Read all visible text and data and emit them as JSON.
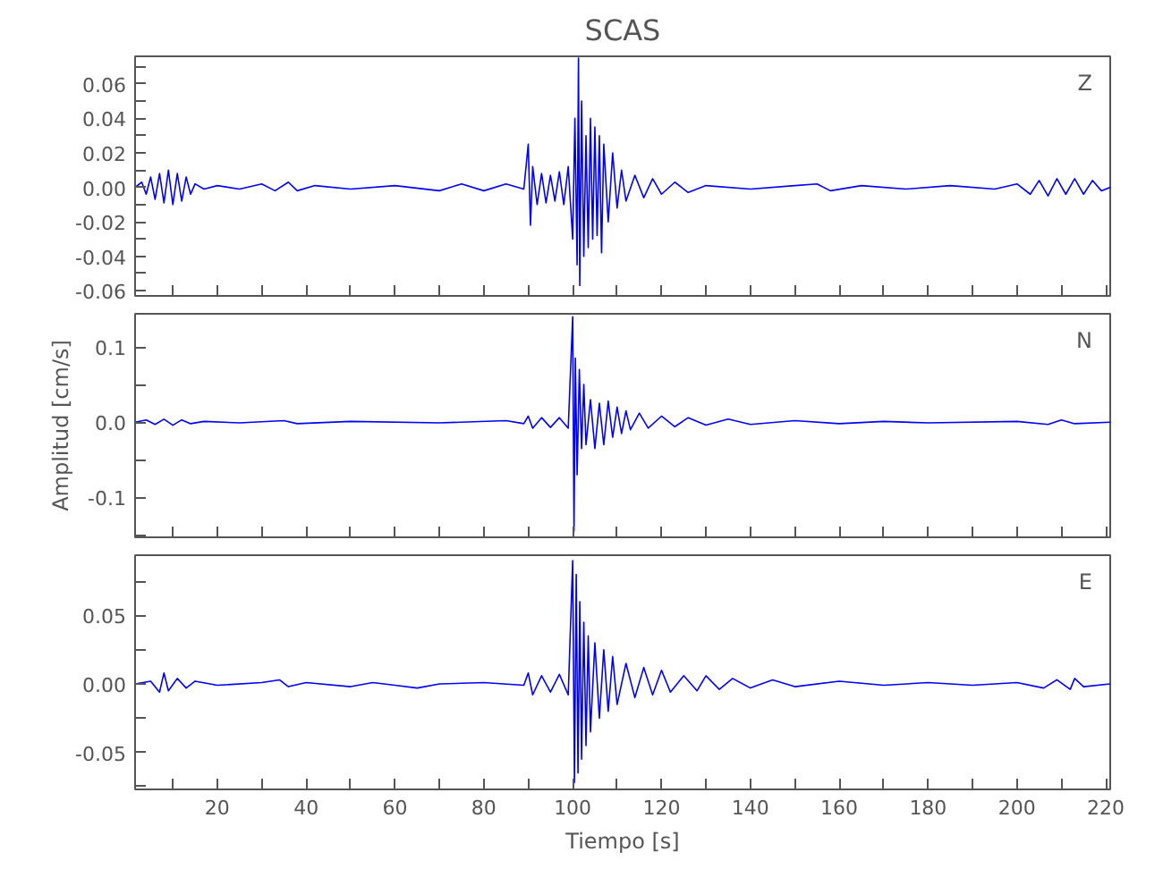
{
  "chart_data": [
    {
      "type": "line",
      "title": "SCAS",
      "annotations": [
        "Z"
      ],
      "grid": false,
      "tick_labels": "y",
      "xlim": [
        1.5,
        221
      ],
      "ylim": [
        -0.063,
        0.076
      ],
      "xticks": [
        {
          "value": 10,
          "label": null
        },
        {
          "value": 20,
          "label": null
        },
        {
          "value": 30,
          "label": null
        },
        {
          "value": 40,
          "label": null
        },
        {
          "value": 50,
          "label": null
        },
        {
          "value": 60,
          "label": null
        },
        {
          "value": 70,
          "label": null
        },
        {
          "value": 80,
          "label": null
        },
        {
          "value": 90,
          "label": null
        },
        {
          "value": 100,
          "label": null
        },
        {
          "value": 110,
          "label": null
        },
        {
          "value": 120,
          "label": null
        },
        {
          "value": 130,
          "label": null
        },
        {
          "value": 140,
          "label": null
        },
        {
          "value": 150,
          "label": null
        },
        {
          "value": 160,
          "label": null
        },
        {
          "value": 170,
          "label": null
        },
        {
          "value": 180,
          "label": null
        },
        {
          "value": 190,
          "label": null
        },
        {
          "value": 200,
          "label": null
        },
        {
          "value": 210,
          "label": null
        },
        {
          "value": 220,
          "label": null
        }
      ],
      "yticks": [
        {
          "value": -0.06,
          "label": "-0.06"
        },
        {
          "value": -0.05,
          "label": null
        },
        {
          "value": -0.04,
          "label": "-0.04"
        },
        {
          "value": -0.03,
          "label": null
        },
        {
          "value": -0.02,
          "label": "-0.02"
        },
        {
          "value": -0.01,
          "label": null
        },
        {
          "value": 0,
          "label": "0.00"
        },
        {
          "value": 0.01,
          "label": null
        },
        {
          "value": 0.02,
          "label": "0.02"
        },
        {
          "value": 0.03,
          "label": null
        },
        {
          "value": 0.04,
          "label": "0.04"
        },
        {
          "value": 0.05,
          "label": null
        },
        {
          "value": 0.06,
          "label": "0.06"
        },
        {
          "value": 0.07,
          "label": null
        }
      ],
      "series": [
        {
          "color": "#0000ff",
          "x": [
            1.5,
            3,
            4,
            5,
            6,
            7,
            8,
            9,
            10,
            11,
            12,
            13,
            14,
            15,
            17,
            20,
            25,
            30,
            33,
            36,
            38,
            42,
            50,
            60,
            70,
            75,
            80,
            85,
            89,
            90,
            90.5,
            91,
            92,
            93,
            94,
            95,
            96,
            97,
            98,
            99,
            100,
            100.5,
            101,
            101.3,
            101.6,
            102,
            102.5,
            103,
            103.5,
            104,
            104.5,
            105,
            105.5,
            106,
            106.5,
            107,
            108,
            109,
            110,
            111,
            112,
            114,
            116,
            118,
            120,
            123,
            126,
            130,
            140,
            150,
            155,
            158,
            165,
            175,
            185,
            195,
            200,
            203,
            205,
            207,
            209,
            211,
            213,
            215,
            217,
            219,
            221
          ],
          "values": [
            0,
            0.003,
            -0.004,
            0.006,
            -0.007,
            0.008,
            -0.009,
            0.01,
            -0.01,
            0.008,
            -0.008,
            0.006,
            -0.004,
            0.002,
            -0.001,
            0.001,
            -0.001,
            0.002,
            -0.002,
            0.003,
            -0.002,
            0.001,
            -0.001,
            0.001,
            -0.002,
            0.002,
            -0.002,
            0.002,
            -0.001,
            0.025,
            -0.022,
            0.012,
            -0.01,
            0.008,
            -0.009,
            0.007,
            -0.008,
            0.009,
            -0.01,
            0.012,
            -0.03,
            0.04,
            -0.045,
            0.075,
            -0.057,
            0.05,
            -0.04,
            0.03,
            -0.035,
            0.04,
            -0.03,
            0.035,
            -0.028,
            0.03,
            -0.038,
            0.025,
            -0.02,
            0.02,
            -0.012,
            0.01,
            -0.008,
            0.007,
            -0.006,
            0.005,
            -0.004,
            0.003,
            -0.003,
            0.001,
            -0.001,
            0.001,
            0.002,
            -0.002,
            0.001,
            -0.001,
            0.001,
            -0.001,
            0.002,
            -0.004,
            0.004,
            -0.005,
            0.005,
            -0.004,
            0.005,
            -0.004,
            0.004,
            -0.002,
            0
          ]
        }
      ]
    },
    {
      "type": "line",
      "ylabel": "Amplitud [cm/s]",
      "annotations": [
        "N"
      ],
      "grid": false,
      "tick_labels": "y",
      "xlim": [
        1.5,
        221
      ],
      "ylim": [
        -0.153,
        0.144
      ],
      "xticks": [
        {
          "value": 10,
          "label": null
        },
        {
          "value": 20,
          "label": null
        },
        {
          "value": 30,
          "label": null
        },
        {
          "value": 40,
          "label": null
        },
        {
          "value": 50,
          "label": null
        },
        {
          "value": 60,
          "label": null
        },
        {
          "value": 70,
          "label": null
        },
        {
          "value": 80,
          "label": null
        },
        {
          "value": 90,
          "label": null
        },
        {
          "value": 100,
          "label": null
        },
        {
          "value": 110,
          "label": null
        },
        {
          "value": 120,
          "label": null
        },
        {
          "value": 130,
          "label": null
        },
        {
          "value": 140,
          "label": null
        },
        {
          "value": 150,
          "label": null
        },
        {
          "value": 160,
          "label": null
        },
        {
          "value": 170,
          "label": null
        },
        {
          "value": 180,
          "label": null
        },
        {
          "value": 190,
          "label": null
        },
        {
          "value": 200,
          "label": null
        },
        {
          "value": 210,
          "label": null
        },
        {
          "value": 220,
          "label": null
        }
      ],
      "yticks": [
        {
          "value": -0.15,
          "label": null
        },
        {
          "value": -0.1,
          "label": "-0.1"
        },
        {
          "value": -0.05,
          "label": null
        },
        {
          "value": 0,
          "label": "0.0"
        },
        {
          "value": 0.05,
          "label": null
        },
        {
          "value": 0.1,
          "label": "0.1"
        }
      ],
      "series": [
        {
          "color": "#0000ff",
          "x": [
            1.5,
            4,
            6,
            8,
            10,
            12,
            14,
            17,
            25,
            35,
            38,
            50,
            70,
            85,
            89,
            90,
            91,
            93,
            95,
            97,
            99,
            100,
            100.3,
            100.6,
            101,
            101.5,
            102,
            102.5,
            103,
            104,
            105,
            106,
            107,
            108,
            109,
            110,
            111,
            112,
            113,
            115,
            117,
            120,
            123,
            126,
            130,
            135,
            140,
            150,
            160,
            170,
            180,
            200,
            207,
            210,
            213,
            221
          ],
          "values": [
            0,
            0.003,
            -0.003,
            0.004,
            -0.004,
            0.003,
            -0.002,
            0.001,
            -0.001,
            0.002,
            -0.002,
            0.001,
            -0.001,
            0.002,
            -0.002,
            0.008,
            -0.008,
            0.006,
            -0.007,
            0.006,
            -0.008,
            0.14,
            -0.145,
            0.085,
            -0.07,
            0.07,
            -0.035,
            0.05,
            -0.03,
            0.03,
            -0.035,
            0.025,
            -0.03,
            0.028,
            -0.02,
            0.02,
            -0.015,
            0.015,
            -0.01,
            0.012,
            -0.008,
            0.008,
            -0.006,
            0.006,
            -0.004,
            0.004,
            -0.003,
            0.002,
            -0.002,
            0.001,
            -0.001,
            0.001,
            -0.003,
            0.003,
            -0.002,
            0
          ]
        }
      ]
    },
    {
      "type": "line",
      "xlabel": "Tiempo [s]",
      "annotations": [
        "E"
      ],
      "grid": false,
      "xlim": [
        1.5,
        221
      ],
      "ylim": [
        -0.077,
        0.094
      ],
      "xticks": [
        {
          "value": 10,
          "label": null
        },
        20,
        {
          "value": 30,
          "label": null
        },
        40,
        {
          "value": 50,
          "label": null
        },
        60,
        {
          "value": 70,
          "label": null
        },
        80,
        {
          "value": 90,
          "label": null
        },
        100,
        {
          "value": 110,
          "label": null
        },
        120,
        {
          "value": 130,
          "label": null
        },
        140,
        {
          "value": 150,
          "label": null
        },
        160,
        {
          "value": 170,
          "label": null
        },
        180,
        {
          "value": 190,
          "label": null
        },
        200,
        {
          "value": 210,
          "label": null
        },
        220
      ],
      "yticks": [
        {
          "value": -0.075,
          "label": null
        },
        {
          "value": -0.05,
          "label": "-0.05"
        },
        {
          "value": -0.025,
          "label": null
        },
        {
          "value": 0,
          "label": "0.00"
        },
        {
          "value": 0.025,
          "label": null
        },
        {
          "value": 0.05,
          "label": "0.05"
        },
        {
          "value": 0.075,
          "label": null
        }
      ],
      "series": [
        {
          "color": "#0000ff",
          "x": [
            1.5,
            5,
            7,
            8,
            9,
            11,
            13,
            15,
            20,
            30,
            34,
            36,
            40,
            50,
            55,
            60,
            65,
            70,
            80,
            89,
            90,
            91,
            93,
            95,
            97,
            99,
            100,
            100.4,
            100.8,
            101.2,
            101.6,
            102,
            102.5,
            103,
            103.5,
            104,
            105,
            106,
            107,
            108,
            109,
            110,
            112,
            114,
            116,
            118,
            120,
            122,
            125,
            128,
            130,
            133,
            136,
            140,
            145,
            150,
            160,
            170,
            180,
            190,
            200,
            206,
            209,
            212,
            213,
            215,
            221
          ],
          "values": [
            0,
            0.002,
            -0.006,
            0.008,
            -0.005,
            0.004,
            -0.003,
            0.002,
            -0.001,
            0.001,
            0.003,
            -0.002,
            0.001,
            -0.002,
            0.001,
            -0.001,
            -0.003,
            0,
            0.001,
            -0.001,
            0.008,
            -0.008,
            0.006,
            -0.006,
            0.007,
            -0.008,
            0.09,
            -0.072,
            0.08,
            -0.065,
            0.06,
            -0.055,
            0.045,
            -0.045,
            0.035,
            -0.035,
            0.03,
            -0.025,
            0.025,
            -0.02,
            0.02,
            -0.015,
            0.015,
            -0.01,
            0.012,
            -0.008,
            0.01,
            -0.006,
            0.006,
            -0.005,
            0.006,
            -0.004,
            0.004,
            -0.003,
            0.003,
            -0.002,
            0.002,
            -0.001,
            0.001,
            -0.001,
            0.001,
            -0.003,
            0.003,
            -0.004,
            0.004,
            -0.002,
            0
          ]
        }
      ]
    }
  ]
}
